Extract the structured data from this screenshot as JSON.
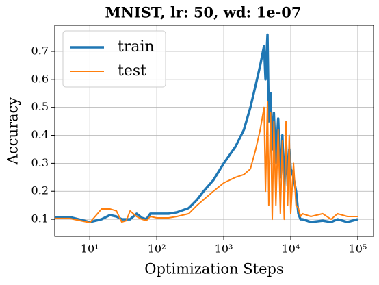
{
  "chart_data": {
    "type": "line",
    "title": "MNIST, lr: 50, wd: 1e-07",
    "x_label": "Optimization Steps",
    "y_label": "Accuracy",
    "x_scale": "log",
    "grid": true,
    "legend": "upper left",
    "xlim": [
      3,
      172000
    ],
    "ylim": [
      0.039,
      0.793
    ],
    "xticks": [
      {
        "value": 10,
        "label": "10¹"
      },
      {
        "value": 100,
        "label": "10²"
      },
      {
        "value": 1000,
        "label": "10³"
      },
      {
        "value": 10000,
        "label": "10⁴"
      },
      {
        "value": 100000,
        "label": "10⁵"
      }
    ],
    "yticks": [
      0.1,
      0.2,
      0.3,
      0.4,
      0.5,
      0.6,
      0.7
    ],
    "x": [
      3,
      5,
      10,
      15,
      20,
      25,
      30,
      35,
      40,
      50,
      60,
      70,
      80,
      100,
      150,
      200,
      300,
      400,
      500,
      700,
      1000,
      1500,
      2000,
      2500,
      3000,
      3500,
      4000,
      4200,
      4500,
      4700,
      5000,
      5300,
      5600,
      6000,
      6500,
      7000,
      7500,
      8000,
      8500,
      9000,
      9500,
      10000,
      11000,
      12000,
      13000,
      14000,
      15000,
      20000,
      30000,
      40000,
      50000,
      70000,
      100000
    ],
    "series": [
      {
        "name": "train",
        "color": "#1f77b4",
        "width": 3.5,
        "values": [
          0.108,
          0.108,
          0.09,
          0.1,
          0.115,
          0.11,
          0.1,
          0.1,
          0.1,
          0.12,
          0.105,
          0.1,
          0.12,
          0.12,
          0.12,
          0.125,
          0.14,
          0.17,
          0.2,
          0.24,
          0.3,
          0.36,
          0.42,
          0.5,
          0.58,
          0.65,
          0.72,
          0.6,
          0.76,
          0.45,
          0.55,
          0.35,
          0.48,
          0.3,
          0.46,
          0.25,
          0.4,
          0.2,
          0.38,
          0.22,
          0.35,
          0.28,
          0.25,
          0.2,
          0.12,
          0.1,
          0.1,
          0.09,
          0.095,
          0.09,
          0.1,
          0.09,
          0.1
        ]
      },
      {
        "name": "test",
        "color": "#ff7f0e",
        "width": 2,
        "values": [
          0.103,
          0.103,
          0.088,
          0.137,
          0.137,
          0.13,
          0.09,
          0.095,
          0.13,
          0.11,
          0.1,
          0.095,
          0.11,
          0.105,
          0.105,
          0.11,
          0.12,
          0.15,
          0.17,
          0.2,
          0.23,
          0.25,
          0.26,
          0.28,
          0.35,
          0.42,
          0.5,
          0.2,
          0.52,
          0.15,
          0.48,
          0.1,
          0.45,
          0.15,
          0.42,
          0.12,
          0.38,
          0.1,
          0.45,
          0.15,
          0.4,
          0.12,
          0.3,
          0.15,
          0.14,
          0.11,
          0.12,
          0.11,
          0.12,
          0.1,
          0.12,
          0.11,
          0.11
        ]
      }
    ]
  }
}
